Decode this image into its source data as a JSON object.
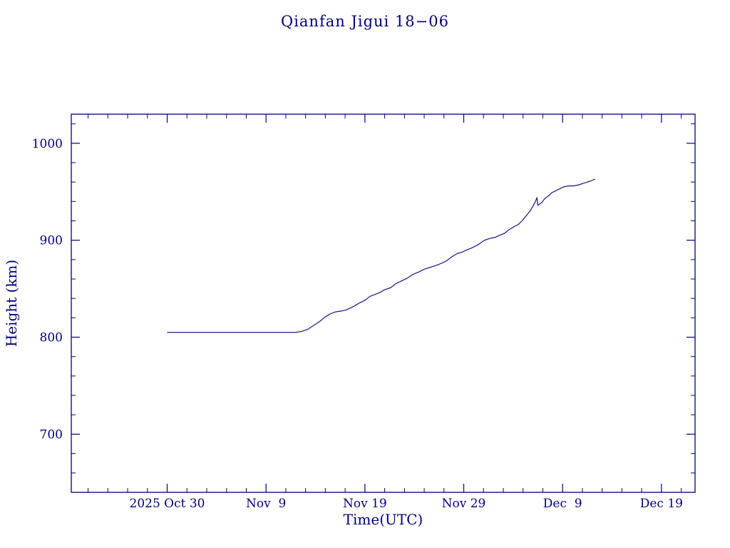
{
  "page": {
    "background": "#ffffff",
    "accent_color": "#000080"
  },
  "chart_data": {
    "type": "line",
    "title": "Qianfan Jigui 18−06",
    "xlabel": "Time(UTC)",
    "ylabel": "Height (km)",
    "x_unit": "days since 2025 Oct 30 (UTC)",
    "xlim": [
      -9.7,
      53.4
    ],
    "ylim": [
      640,
      1030
    ],
    "grid": false,
    "legend": "none",
    "line_color": "#000080",
    "x_major_ticks": [
      {
        "value": 0,
        "label": "2025 Oct 30"
      },
      {
        "value": 10,
        "label": "Nov  9"
      },
      {
        "value": 20,
        "label": "Nov 19"
      },
      {
        "value": 30,
        "label": "Nov 29"
      },
      {
        "value": 40,
        "label": "Dec  9"
      },
      {
        "value": 50,
        "label": "Dec 19"
      }
    ],
    "x_minor_step": 2,
    "y_major_ticks": [
      {
        "value": 700,
        "label": "700"
      },
      {
        "value": 800,
        "label": "800"
      },
      {
        "value": 900,
        "label": "900"
      },
      {
        "value": 1000,
        "label": "1000"
      }
    ],
    "y_minor_step": 20,
    "series": [
      {
        "name": "Qianfan Jigui 18-06 orbital height",
        "points": [
          [
            0,
            805
          ],
          [
            13,
            805
          ],
          [
            13.6,
            806
          ],
          [
            14.2,
            808
          ],
          [
            14.8,
            812
          ],
          [
            15.4,
            816
          ],
          [
            16,
            821
          ],
          [
            16.5,
            824
          ],
          [
            17,
            826
          ],
          [
            17.6,
            827
          ],
          [
            18.1,
            828
          ],
          [
            18.5,
            830
          ],
          [
            18.9,
            832
          ],
          [
            19.4,
            835
          ],
          [
            20,
            838
          ],
          [
            20.5,
            842
          ],
          [
            21,
            844
          ],
          [
            21.5,
            846
          ],
          [
            22,
            849
          ],
          [
            22.6,
            851
          ],
          [
            23.1,
            855
          ],
          [
            23.7,
            858
          ],
          [
            24.3,
            861
          ],
          [
            24.9,
            865
          ],
          [
            25.4,
            867
          ],
          [
            26,
            870
          ],
          [
            26.6,
            872
          ],
          [
            27.2,
            874
          ],
          [
            27.7,
            876
          ],
          [
            28.3,
            879
          ],
          [
            28.8,
            883
          ],
          [
            29.3,
            886
          ],
          [
            29.9,
            888
          ],
          [
            30.3,
            890
          ],
          [
            30.8,
            892
          ],
          [
            31.4,
            895
          ],
          [
            31.8,
            898
          ],
          [
            32.1,
            900
          ],
          [
            32.7,
            902
          ],
          [
            33.2,
            903
          ],
          [
            33.6,
            905
          ],
          [
            34.1,
            907
          ],
          [
            34.6,
            911
          ],
          [
            35.1,
            914
          ],
          [
            35.5,
            916
          ],
          [
            35.9,
            920
          ],
          [
            36.3,
            925
          ],
          [
            36.7,
            930
          ],
          [
            37,
            935
          ],
          [
            37.3,
            941
          ],
          [
            37.4,
            944
          ],
          [
            37.5,
            936
          ],
          [
            37.9,
            939
          ],
          [
            38.2,
            943
          ],
          [
            38.6,
            946
          ],
          [
            38.9,
            949
          ],
          [
            39.3,
            951
          ],
          [
            39.7,
            953
          ],
          [
            40.1,
            955
          ],
          [
            40.6,
            956
          ],
          [
            41.1,
            956
          ],
          [
            41.6,
            957
          ],
          [
            42.2,
            959
          ],
          [
            42.8,
            961
          ],
          [
            43.3,
            963
          ]
        ]
      }
    ]
  }
}
